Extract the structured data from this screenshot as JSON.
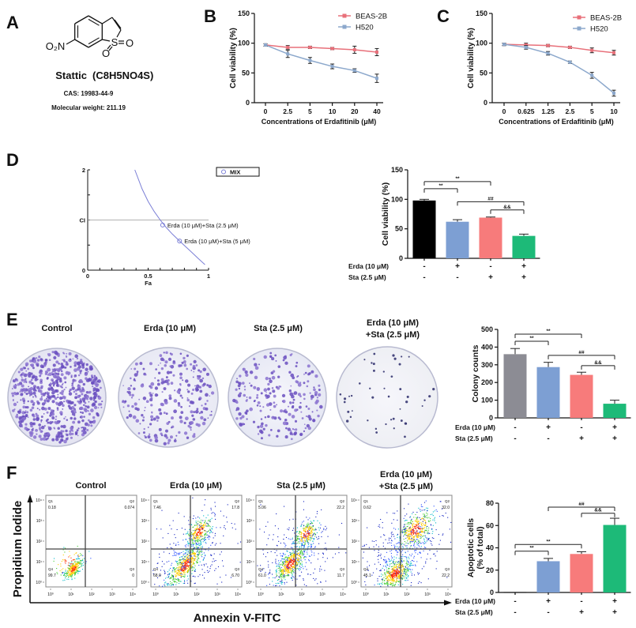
{
  "panel_labels": {
    "a": "A",
    "b": "B",
    "c": "C",
    "d": "D",
    "e": "E",
    "f": "F"
  },
  "panel_a": {
    "compound_name": "Stattic",
    "formula": "(C8H5NO4S)",
    "cas": "CAS: 19983-44-9",
    "molecular_weight": "Molecular weight: 211.19",
    "structure_labels": {
      "nitro": "O₂N",
      "sulfur": "S",
      "oxo_right": "O",
      "oxo_bottom": "O"
    }
  },
  "conditions": {
    "control": "Control",
    "erda": "Erda (10 μM)",
    "sta": "Sta (2.5 μM)",
    "combo_line1": "Erda (10 μM)",
    "combo_line2": "+Sta (2.5 μM)"
  },
  "treatment_rows": {
    "erda": "Erda (10 μM)",
    "sta": "Sta (2.5 μM)",
    "erda_signs": [
      "-",
      "+",
      "-",
      "+"
    ],
    "sta_signs": [
      "-",
      "-",
      "+",
      "+"
    ]
  },
  "flow_axes": {
    "ylabel": "Propidium Iodide",
    "xlabel": "Annexin V-FITC",
    "tick_labels": [
      "10⁰",
      "10¹",
      "10²",
      "10³",
      "10⁴"
    ]
  },
  "chart_data": [
    {
      "panel": "B",
      "type": "line",
      "x": [
        "0",
        "2.5",
        "5",
        "10",
        "20",
        "40"
      ],
      "xlabel": "Concentrations of Erdafitinib (μM)",
      "ylabel": "Cell viability (%)",
      "ylim": [
        0,
        150
      ],
      "yticks": [
        0,
        50,
        100,
        150
      ],
      "legend": "top-right",
      "series": [
        {
          "name": "BEAS-2B",
          "color": "#e8707a",
          "values": [
            97,
            93,
            93,
            91,
            89,
            85
          ],
          "errors": [
            2,
            3,
            2,
            2,
            6,
            6
          ]
        },
        {
          "name": "H520",
          "color": "#8ca8cc",
          "values": [
            97,
            82,
            71,
            61,
            54,
            41
          ],
          "errors": [
            2,
            6,
            5,
            4,
            3,
            7
          ]
        }
      ]
    },
    {
      "panel": "C",
      "type": "line",
      "x": [
        "0",
        "0.625",
        "1.25",
        "2.5",
        "5",
        "10"
      ],
      "xlabel": "Concentrations of Erdafitinib (μM)",
      "ylabel": "Cell viability (%)",
      "ylim": [
        0,
        150
      ],
      "yticks": [
        0,
        50,
        100,
        150
      ],
      "legend": "top-right",
      "series": [
        {
          "name": "BEAS-2B",
          "color": "#e8707a",
          "values": [
            98,
            97,
            96,
            93,
            88,
            84
          ],
          "errors": [
            2,
            3,
            2,
            2,
            4,
            4
          ]
        },
        {
          "name": "H520",
          "color": "#8ca8cc",
          "values": [
            98,
            93,
            83,
            68,
            46,
            16
          ],
          "errors": [
            2,
            3,
            3,
            2,
            5,
            5
          ]
        }
      ]
    },
    {
      "panel": "D-left",
      "type": "scatter",
      "xlabel": "Fa",
      "ylabel": "CI",
      "xlim": [
        0,
        1
      ],
      "ylim": [
        0,
        2
      ],
      "xticks": [
        "0",
        "0.5",
        "1"
      ],
      "yticks": [
        "0",
        "CI",
        "2"
      ],
      "reference_line_ci": 1,
      "legend": {
        "label": "MIX",
        "placement": "top-right"
      },
      "curve_color": "#7b7fd6",
      "curve": [
        [
          0.39,
          2.0
        ],
        [
          0.45,
          1.62
        ],
        [
          0.5,
          1.37
        ],
        [
          0.55,
          1.17
        ],
        [
          0.6,
          1.0
        ],
        [
          0.65,
          0.85
        ],
        [
          0.7,
          0.72
        ],
        [
          0.76,
          0.58
        ],
        [
          0.85,
          0.38
        ],
        [
          0.92,
          0.22
        ],
        [
          0.97,
          0.11
        ]
      ],
      "points": [
        {
          "fa": 0.62,
          "ci": 0.9,
          "label": "Erda (10 μM)+Sta (2.5 μM)"
        },
        {
          "fa": 0.76,
          "ci": 0.58,
          "label": "Erda (10 μM)+Sta (5 μM)"
        }
      ]
    },
    {
      "panel": "D-right",
      "type": "bar",
      "ylabel": "Cell viability (%)",
      "ylim": [
        0,
        150
      ],
      "yticks": [
        0,
        50,
        100,
        150
      ],
      "values": [
        98,
        62,
        69,
        38
      ],
      "errors": [
        2,
        3.5,
        1,
        3
      ],
      "colors": [
        "#000000",
        "#7d9fd3",
        "#f77b7b",
        "#1dba78"
      ],
      "significance": [
        {
          "from": 0,
          "to": 1,
          "level": 118,
          "label": "**"
        },
        {
          "from": 0,
          "to": 2,
          "level": 130,
          "label": "**"
        },
        {
          "from": 1,
          "to": 3,
          "level": 96,
          "label": "##"
        },
        {
          "from": 2,
          "to": 3,
          "level": 82,
          "label": "&&"
        }
      ]
    },
    {
      "panel": "E-right",
      "type": "bar",
      "ylabel": "Colony counts",
      "ylim": [
        0,
        500
      ],
      "yticks": [
        0,
        100,
        200,
        300,
        400,
        500
      ],
      "values": [
        360,
        287,
        243,
        80
      ],
      "errors": [
        32,
        27,
        15,
        20
      ],
      "colors": [
        "#8c8c94",
        "#7d9fd3",
        "#f77b7b",
        "#1dba78"
      ],
      "significance": [
        {
          "from": 0,
          "to": 1,
          "level": 433,
          "label": "**"
        },
        {
          "from": 0,
          "to": 2,
          "level": 473,
          "label": "**"
        },
        {
          "from": 1,
          "to": 3,
          "level": 353,
          "label": "##"
        },
        {
          "from": 2,
          "to": 3,
          "level": 295,
          "label": "&&"
        }
      ]
    },
    {
      "panel": "F-right",
      "type": "bar",
      "ylabel": "Apoptotic cells",
      "ylabel2": "(% of total)",
      "ylim": [
        0,
        80
      ],
      "yticks": [
        0,
        20,
        40,
        60,
        80
      ],
      "values": [
        0.3,
        28,
        34.5,
        60.5
      ],
      "errors": [
        0,
        2.5,
        2,
        6
      ],
      "colors": [
        "#000000",
        "#7d9fd3",
        "#f77b7b",
        "#1dba78"
      ],
      "significance": [
        {
          "from": 0,
          "to": 1,
          "level": 37,
          "label": "**"
        },
        {
          "from": 0,
          "to": 2,
          "level": 43,
          "label": "**"
        },
        {
          "from": 1,
          "to": 3,
          "level": 76.5,
          "label": "##"
        },
        {
          "from": 2,
          "to": 3,
          "level": 71,
          "label": "&&"
        }
      ]
    },
    {
      "panel": "F-flow",
      "type": "scatter",
      "quadrant_names": [
        "Q1",
        "Q2",
        "Q3",
        "Q4"
      ],
      "samples": [
        {
          "title_key": "control",
          "Q1": "0.18",
          "Q2": "0.074",
          "Q3": "0",
          "Q4": "99.7"
        },
        {
          "title_key": "erda",
          "Q1": "7.46",
          "Q2": "17.8",
          "Q3": "6.70",
          "Q4": "68.0"
        },
        {
          "title_key": "sta",
          "Q1": "5.06",
          "Q2": "22.2",
          "Q3": "11.7",
          "Q4": "61.0"
        },
        {
          "title_key": "combo",
          "Q1": "0.62",
          "Q2": "32.0",
          "Q3": "22.2",
          "Q4": "45.1"
        }
      ]
    }
  ]
}
